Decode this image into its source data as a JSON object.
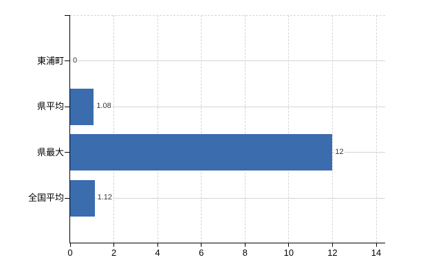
{
  "chart_data": {
    "type": "bar",
    "orientation": "horizontal",
    "title": "",
    "categories": [
      "東浦町",
      "県平均",
      "県最大",
      "全国平均"
    ],
    "values": [
      0,
      1.08,
      12,
      1.12
    ],
    "value_labels": [
      "0",
      "1.08",
      "12",
      "1.12"
    ],
    "x_ticks": [
      0,
      2,
      4,
      6,
      8,
      10,
      12,
      14
    ],
    "x_tick_labels": [
      "0",
      "2",
      "4",
      "6",
      "8",
      "10",
      "12",
      "14"
    ],
    "xlim": [
      0,
      14.4
    ],
    "xlabel": "",
    "ylabel": "",
    "legend": "none",
    "grid": true,
    "bar_color": "#3b6cae",
    "axis_color": "#000000",
    "grid_color": "#d4d4d4",
    "category_label_color": "#000000",
    "value_label_color": "#333333"
  }
}
